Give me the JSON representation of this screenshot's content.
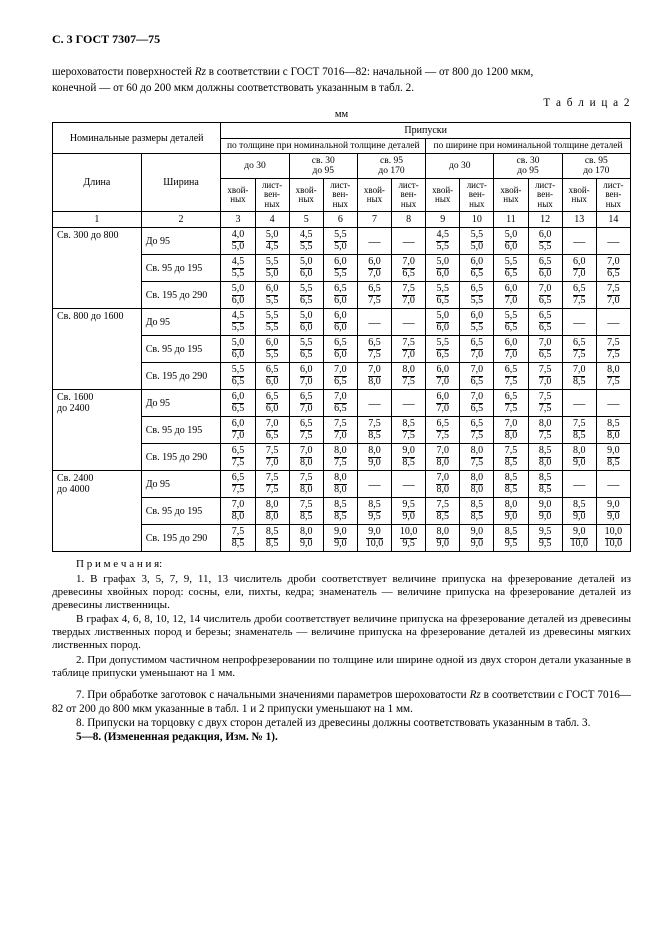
{
  "header": "С. 3 ГОСТ 7307—75",
  "intro_line1": "шероховатости поверхностей ",
  "intro_rz": "Rz",
  "intro_line1b": " в соответствии с ГОСТ 7016—82: начальной — от 800 до 1200 мкм,",
  "intro_line2": "конечной — от 60 до 200 мкм должны соответствовать указанным в табл. 2.",
  "table_caption": "Т а б л и ц а  2",
  "mm": "мм",
  "hdr_nominal": "Номинальные размеры деталей",
  "hdr_pripuski": "Припуски",
  "hdr_thickness": "по толщине при номинальной толщине деталей",
  "hdr_width": "по ширине при номинальной толщине деталей",
  "range_1": "до 30",
  "range_2_a": "св. 30",
  "range_2_b": "до 95",
  "range_3_a": "св. 95",
  "range_3_b": "до 170",
  "col_dlina": "Длина",
  "col_shirina": "Ширина",
  "wood_hv": "хвой-\nных",
  "wood_lv": "лист-\nвен-\nных",
  "col_nums": [
    "1",
    "2",
    "3",
    "4",
    "5",
    "6",
    "7",
    "8",
    "9",
    "10",
    "11",
    "12",
    "13",
    "14"
  ],
  "length_groups": [
    "Св. 300 до 800",
    "Св. 800 до 1600",
    "Св. 1600\nдо 2400",
    "Св. 2400\nдо 4000"
  ],
  "width_labels": [
    "До 95",
    "Св. 95 до 195",
    "Св. 195 до 290"
  ],
  "rows": [
    [
      [
        "4,0",
        "5,0"
      ],
      [
        "5,0",
        "4,5"
      ],
      [
        "4,5",
        "5,5"
      ],
      [
        "5,5",
        "5,0"
      ],
      null,
      null,
      [
        "4,5",
        "5,5"
      ],
      [
        "5,5",
        "5,0"
      ],
      [
        "5,0",
        "6,0"
      ],
      [
        "6,0",
        "5,5"
      ],
      null,
      null
    ],
    [
      [
        "4,5",
        "5,5"
      ],
      [
        "5,5",
        "5,0"
      ],
      [
        "5,0",
        "6,0"
      ],
      [
        "6,0",
        "5,5"
      ],
      [
        "6,0",
        "7,0"
      ],
      [
        "7,0",
        "6,5"
      ],
      [
        "5,0",
        "6,0"
      ],
      [
        "6,0",
        "6,5"
      ],
      [
        "5,5",
        "6,5"
      ],
      [
        "6,5",
        "6,0"
      ],
      [
        "6,0",
        "7,0"
      ],
      [
        "7,0",
        "6,5"
      ]
    ],
    [
      [
        "5,0",
        "6,0"
      ],
      [
        "6,0",
        "5,5"
      ],
      [
        "5,5",
        "6,5"
      ],
      [
        "6,5",
        "6,0"
      ],
      [
        "6,5",
        "7,5"
      ],
      [
        "7,5",
        "7,0"
      ],
      [
        "5,5",
        "6,5"
      ],
      [
        "6,5",
        "5,5"
      ],
      [
        "6,0",
        "7,0"
      ],
      [
        "7,0",
        "6,5"
      ],
      [
        "6,5",
        "7,5"
      ],
      [
        "7,5",
        "7,0"
      ]
    ],
    [
      [
        "4,5",
        "5,5"
      ],
      [
        "5,5",
        "5,5"
      ],
      [
        "5,0",
        "6,0"
      ],
      [
        "6,0",
        "6,0"
      ],
      null,
      null,
      [
        "5,0",
        "6,0"
      ],
      [
        "6,0",
        "5,5"
      ],
      [
        "5,5",
        "6,5"
      ],
      [
        "6,5",
        "6,5"
      ],
      null,
      null
    ],
    [
      [
        "5,0",
        "6,0"
      ],
      [
        "6,0",
        "5,5"
      ],
      [
        "5,5",
        "6,5"
      ],
      [
        "6,5",
        "6,0"
      ],
      [
        "6,5",
        "7,5"
      ],
      [
        "7,5",
        "7,0"
      ],
      [
        "5,5",
        "6,5"
      ],
      [
        "6,5",
        "7,0"
      ],
      [
        "6,0",
        "7,0"
      ],
      [
        "7,0",
        "6,5"
      ],
      [
        "6,5",
        "7,5"
      ],
      [
        "7,5",
        "7,5"
      ]
    ],
    [
      [
        "5,5",
        "6,5"
      ],
      [
        "6,5",
        "6,0"
      ],
      [
        "6,0",
        "7,0"
      ],
      [
        "7,0",
        "6,5"
      ],
      [
        "7,0",
        "8,0"
      ],
      [
        "8,0",
        "7,5"
      ],
      [
        "6,0",
        "7,0"
      ],
      [
        "7,0",
        "6,5"
      ],
      [
        "6,5",
        "7,5"
      ],
      [
        "7,5",
        "7,0"
      ],
      [
        "7,0",
        "8,5"
      ],
      [
        "8,0",
        "7,5"
      ]
    ],
    [
      [
        "6,0",
        "6,5"
      ],
      [
        "6,5",
        "6,0"
      ],
      [
        "6,5",
        "7,0"
      ],
      [
        "7,0",
        "6,5"
      ],
      null,
      null,
      [
        "6,0",
        "7,0"
      ],
      [
        "7,0",
        "6,5"
      ],
      [
        "6,5",
        "7,5"
      ],
      [
        "7,5",
        "7,5"
      ],
      null,
      null
    ],
    [
      [
        "6,0",
        "7,0"
      ],
      [
        "7,0",
        "6,5"
      ],
      [
        "6,5",
        "7,5"
      ],
      [
        "7,5",
        "7,0"
      ],
      [
        "7,5",
        "8,5"
      ],
      [
        "8,5",
        "7,5"
      ],
      [
        "6,5",
        "7,5"
      ],
      [
        "6,5",
        "7,5"
      ],
      [
        "7,0",
        "8,0"
      ],
      [
        "8,0",
        "7,5"
      ],
      [
        "7,5",
        "8,5"
      ],
      [
        "8,5",
        "8,0"
      ]
    ],
    [
      [
        "6,5",
        "7,5"
      ],
      [
        "7,5",
        "7,0"
      ],
      [
        "7,0",
        "8,0"
      ],
      [
        "8,0",
        "7,5"
      ],
      [
        "8,0",
        "9,0"
      ],
      [
        "9,0",
        "8,5"
      ],
      [
        "7,0",
        "8,0"
      ],
      [
        "8,0",
        "7,5"
      ],
      [
        "7,5",
        "8,5"
      ],
      [
        "8,5",
        "8,0"
      ],
      [
        "8,0",
        "9,0"
      ],
      [
        "9,0",
        "8,5"
      ]
    ],
    [
      [
        "6,5",
        "7,5"
      ],
      [
        "7,5",
        "7,5"
      ],
      [
        "7,5",
        "8,0"
      ],
      [
        "8,0",
        "8,0"
      ],
      null,
      null,
      [
        "7,0",
        "8,0"
      ],
      [
        "8,0",
        "8,0"
      ],
      [
        "8,5",
        "8,5"
      ],
      [
        "8,5",
        "8,5"
      ],
      null,
      null
    ],
    [
      [
        "7,0",
        "8,0"
      ],
      [
        "8,0",
        "8,0"
      ],
      [
        "7,5",
        "8,5"
      ],
      [
        "8,5",
        "8,5"
      ],
      [
        "8,5",
        "9,5"
      ],
      [
        "9,5",
        "9,0"
      ],
      [
        "7,5",
        "8,5"
      ],
      [
        "8,5",
        "8,5"
      ],
      [
        "8,0",
        "9,0"
      ],
      [
        "9,0",
        "9,0"
      ],
      [
        "8,5",
        "9,0"
      ],
      [
        "9,0",
        "9,0"
      ]
    ],
    [
      [
        "7,5",
        "8,5"
      ],
      [
        "8,5",
        "8,5"
      ],
      [
        "8,0",
        "9,0"
      ],
      [
        "9,0",
        "9,0"
      ],
      [
        "9,0",
        "10,0"
      ],
      [
        "10,0",
        "9,5"
      ],
      [
        "8,0",
        "9,0"
      ],
      [
        "9,0",
        "9,0"
      ],
      [
        "8,5",
        "9,5"
      ],
      [
        "9,5",
        "9,5"
      ],
      [
        "9,0",
        "10,0"
      ],
      [
        "10,0",
        "10,0"
      ]
    ]
  ],
  "notes_head": "П р и м е ч а н и я:",
  "note1a": "1. В графах 3, 5, 7, 9, 11, 13 числитель дроби соответствует величине припуска на фрезерование деталей из древесины хвойных пород: сосны, ели, пихты, кедра; знаменатель — величине припуска на фрезерование деталей из древесины лиственницы.",
  "note1b": "В графах 4, 6, 8, 10, 12, 14 числитель дроби соответствует величине припуска на фрезерование деталей из древесины твердых лиственных пород и березы; знаменатель — величине припуска на фрезерование деталей из древесины мягких лиственных пород.",
  "note2": "2. При допустимом частичном непрофрезеровании по толщине или ширине одной из двух сторон детали указанные в таблице припуски уменьшают на 1 мм.",
  "para7a": "7. При обработке заготовок с начальными значениями параметров шероховатости ",
  "para7b": " в соответствии с ГОСТ 7016—82 от 200 до 800 мкм указанные в табл. 1 и 2 припуски уменьшают на 1 мм.",
  "para8": "8. Припуски на торцовку с двух сторон деталей из древесины должны соответствовать указанным в табл. 3.",
  "para_izm": "5—8. (Измененная редакция, Изм. № 1)."
}
